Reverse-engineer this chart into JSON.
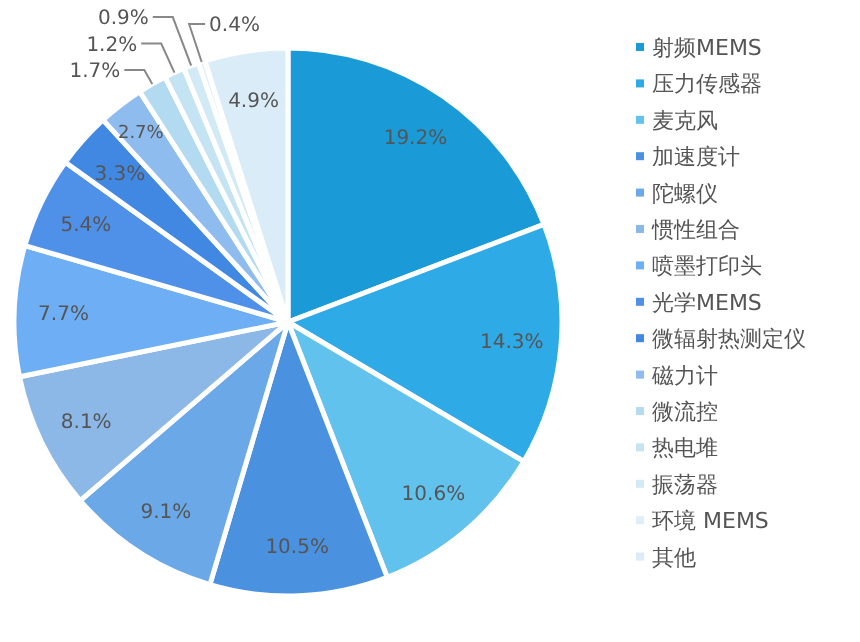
{
  "chart_data": {
    "type": "pie",
    "legend": "right",
    "categories": [
      "射频MEMS",
      "压力传感器",
      "麦克风",
      "加速度计",
      "陀螺仪",
      "惯性组合",
      "喷墨打印头",
      "光学MEMS",
      "微辐射热测定仪",
      "磁力计",
      "微流控",
      "热电堆",
      "振荡器",
      "环境 MEMS",
      "其他"
    ],
    "values": [
      19.2,
      14.3,
      10.6,
      10.5,
      9.1,
      8.1,
      7.7,
      5.4,
      3.3,
      2.7,
      1.7,
      1.2,
      0.9,
      0.4,
      4.9
    ],
    "value_labels": [
      "19.2%",
      "14.3%",
      "10.6%",
      "10.5%",
      "9.1%",
      "8.1%",
      "7.7%",
      "5.4%",
      "3.3%",
      "2.7%",
      "1.7%",
      "1.2%",
      "0.9%",
      "0.4%",
      "4.9%"
    ],
    "colors": [
      "#1a9ad6",
      "#2eaae6",
      "#62c2ee",
      "#4a92e0",
      "#6aa8e8",
      "#8cb8e8",
      "#6eaef5",
      "#4f90e8",
      "#4188e2",
      "#8fbcef",
      "#b2daf0",
      "#c4e3f3",
      "#d1eaf6",
      "#dfeff9",
      "#daecf8"
    ]
  }
}
